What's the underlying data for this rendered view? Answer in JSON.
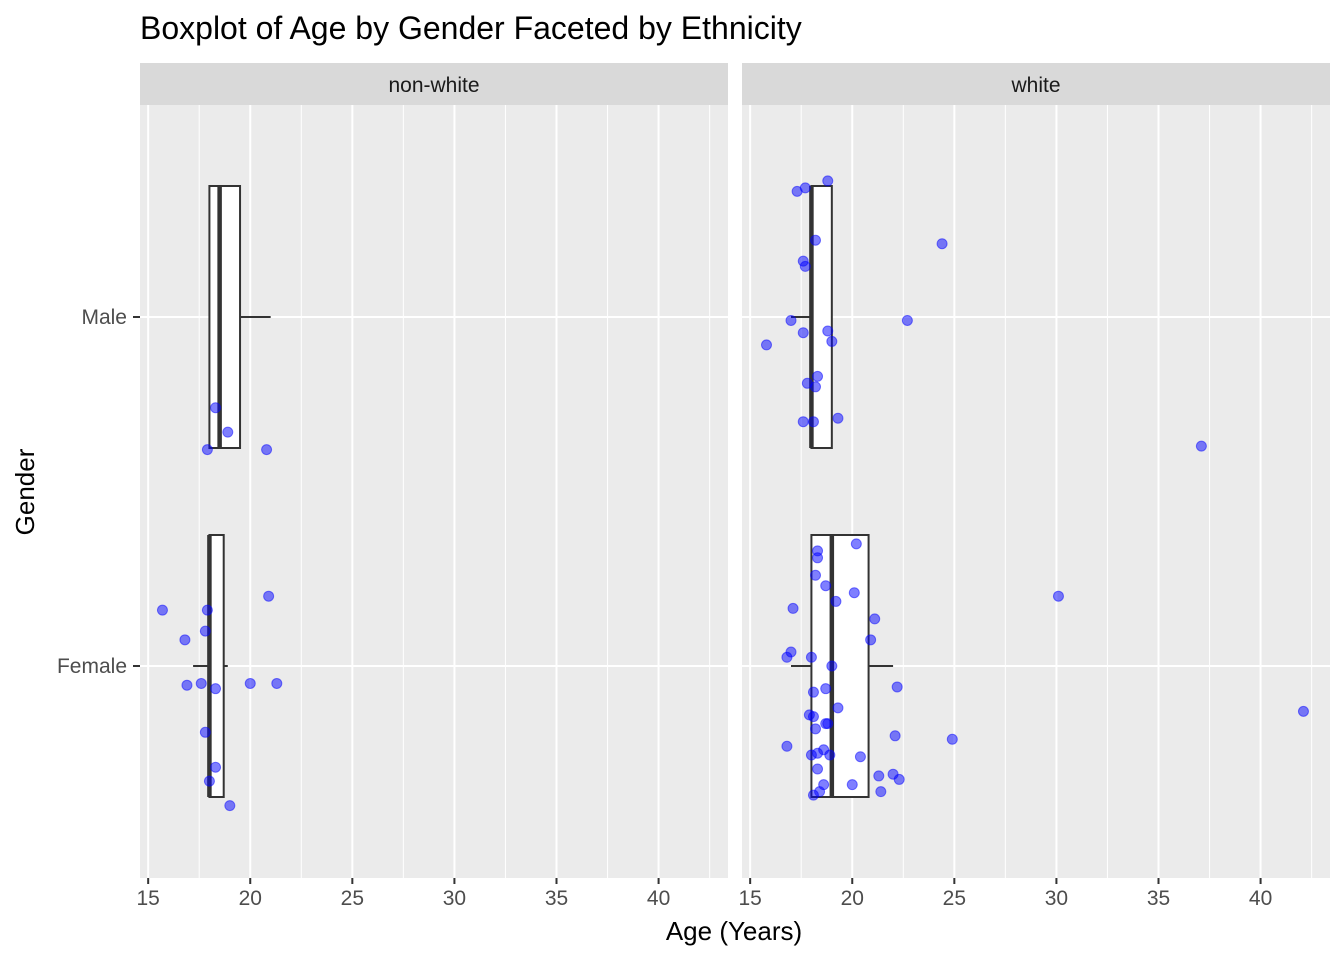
{
  "chart_data": {
    "type": "boxplot",
    "title": "Boxplot of Age by Gender Faceted by Ethnicity",
    "xlabel": "Age (Years)",
    "ylabel": "Gender",
    "xlim": [
      14.6,
      43.4
    ],
    "x_ticks": [
      15,
      20,
      25,
      30,
      35,
      40
    ],
    "categories": [
      "Female",
      "Male"
    ],
    "grid": true,
    "point_color": "#0000ff",
    "facets": [
      {
        "label": "non-white",
        "boxes": [
          {
            "category": "Male",
            "whisker_low": 18,
            "q1": 18,
            "median": 18.5,
            "q3": 19.5,
            "whisker_high": 21,
            "points": [
              {
                "x": 18.3,
                "y": -0.26
              },
              {
                "x": 18.9,
                "y": -0.33
              },
              {
                "x": 17.9,
                "y": -0.38
              },
              {
                "x": 20.8,
                "y": -0.38
              }
            ]
          },
          {
            "category": "Female",
            "whisker_low": 17.2,
            "q1": 18,
            "median": 18,
            "q3": 18.7,
            "whisker_high": 18.9,
            "points": [
              {
                "x": 15.7,
                "y": 0.16
              },
              {
                "x": 17.9,
                "y": 0.16
              },
              {
                "x": 20.9,
                "y": 0.2
              },
              {
                "x": 17.8,
                "y": 0.1
              },
              {
                "x": 16.8,
                "y": 0.075
              },
              {
                "x": 16.9,
                "y": -0.055
              },
              {
                "x": 17.6,
                "y": -0.05
              },
              {
                "x": 18.3,
                "y": -0.065
              },
              {
                "x": 20.0,
                "y": -0.05
              },
              {
                "x": 21.3,
                "y": -0.05
              },
              {
                "x": 17.8,
                "y": -0.19
              },
              {
                "x": 18.3,
                "y": -0.29
              },
              {
                "x": 18.0,
                "y": -0.33
              },
              {
                "x": 19.0,
                "y": -0.4
              }
            ]
          }
        ]
      },
      {
        "label": "white",
        "boxes": [
          {
            "category": "Male",
            "whisker_low": 17,
            "q1": 18,
            "median": 18,
            "q3": 19,
            "whisker_high": 19,
            "points": [
              {
                "x": 18.8,
                "y": 0.39
              },
              {
                "x": 17.7,
                "y": 0.37
              },
              {
                "x": 17.3,
                "y": 0.36
              },
              {
                "x": 18.2,
                "y": 0.22
              },
              {
                "x": 24.4,
                "y": 0.21
              },
              {
                "x": 17.6,
                "y": 0.16
              },
              {
                "x": 17.7,
                "y": 0.145
              },
              {
                "x": 17.0,
                "y": -0.01
              },
              {
                "x": 22.7,
                "y": -0.01
              },
              {
                "x": 17.6,
                "y": -0.045
              },
              {
                "x": 18.8,
                "y": -0.04
              },
              {
                "x": 19.0,
                "y": -0.07
              },
              {
                "x": 15.8,
                "y": -0.08
              },
              {
                "x": 18.3,
                "y": -0.17
              },
              {
                "x": 17.8,
                "y": -0.19
              },
              {
                "x": 18.2,
                "y": -0.2
              },
              {
                "x": 19.3,
                "y": -0.29
              },
              {
                "x": 17.6,
                "y": -0.3
              },
              {
                "x": 18.1,
                "y": -0.3
              },
              {
                "x": 37.1,
                "y": -0.37
              }
            ]
          },
          {
            "category": "Female",
            "whisker_low": 17,
            "q1": 18,
            "median": 19,
            "q3": 20.8,
            "whisker_high": 22,
            "points": [
              {
                "x": 20.2,
                "y": 0.35
              },
              {
                "x": 18.3,
                "y": 0.33
              },
              {
                "x": 18.3,
                "y": 0.31
              },
              {
                "x": 18.2,
                "y": 0.26
              },
              {
                "x": 18.7,
                "y": 0.23
              },
              {
                "x": 20.1,
                "y": 0.21
              },
              {
                "x": 30.1,
                "y": 0.2
              },
              {
                "x": 19.2,
                "y": 0.185
              },
              {
                "x": 17.1,
                "y": 0.165
              },
              {
                "x": 21.1,
                "y": 0.135
              },
              {
                "x": 20.9,
                "y": 0.075
              },
              {
                "x": 17.0,
                "y": 0.04
              },
              {
                "x": 16.8,
                "y": 0.025
              },
              {
                "x": 18.0,
                "y": 0.025
              },
              {
                "x": 19.0,
                "y": 0.0
              },
              {
                "x": 22.2,
                "y": -0.06
              },
              {
                "x": 18.1,
                "y": -0.075
              },
              {
                "x": 18.7,
                "y": -0.065
              },
              {
                "x": 19.3,
                "y": -0.12
              },
              {
                "x": 17.9,
                "y": -0.14
              },
              {
                "x": 18.1,
                "y": -0.145
              },
              {
                "x": 18.7,
                "y": -0.165
              },
              {
                "x": 18.8,
                "y": -0.165
              },
              {
                "x": 42.1,
                "y": -0.13
              },
              {
                "x": 18.2,
                "y": -0.18
              },
              {
                "x": 22.1,
                "y": -0.2
              },
              {
                "x": 24.9,
                "y": -0.21
              },
              {
                "x": 16.8,
                "y": -0.23
              },
              {
                "x": 18.6,
                "y": -0.24
              },
              {
                "x": 18.3,
                "y": -0.25
              },
              {
                "x": 18.0,
                "y": -0.255
              },
              {
                "x": 18.9,
                "y": -0.255
              },
              {
                "x": 20.4,
                "y": -0.26
              },
              {
                "x": 18.3,
                "y": -0.295
              },
              {
                "x": 21.3,
                "y": -0.315
              },
              {
                "x": 22.0,
                "y": -0.31
              },
              {
                "x": 22.3,
                "y": -0.325
              },
              {
                "x": 18.6,
                "y": -0.34
              },
              {
                "x": 20.0,
                "y": -0.34
              },
              {
                "x": 18.4,
                "y": -0.36
              },
              {
                "x": 21.4,
                "y": -0.36
              },
              {
                "x": 18.1,
                "y": -0.37
              }
            ]
          }
        ]
      }
    ]
  }
}
